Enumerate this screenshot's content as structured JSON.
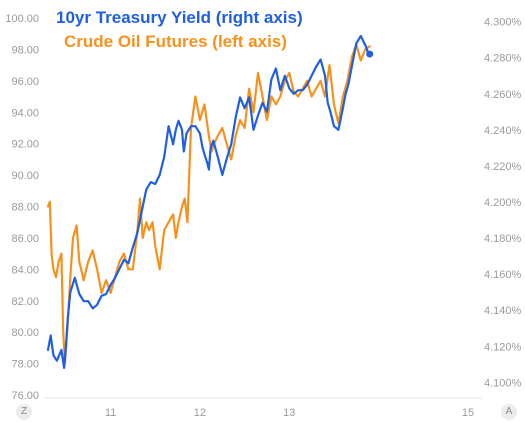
{
  "chart_data": {
    "type": "line",
    "title": "",
    "xlabel": "",
    "legend_position": "top-left",
    "grid": false,
    "x_ticks": [
      "11",
      "12",
      "13",
      "15"
    ],
    "x_range": [
      10.3,
      15
    ],
    "y_left": {
      "ticks": [
        "76.00",
        "78.00",
        "80.00",
        "82.00",
        "84.00",
        "86.00",
        "88.00",
        "90.00",
        "92.00",
        "94.00",
        "96.00",
        "98.00",
        "100.00"
      ],
      "range": [
        76,
        100
      ]
    },
    "y_right": {
      "ticks": [
        "4.100%",
        "4.120%",
        "4.140%",
        "4.160%",
        "4.180%",
        "4.200%",
        "4.220%",
        "4.240%",
        "4.260%",
        "4.280%",
        "4.300%"
      ],
      "range": [
        4.093,
        4.302
      ]
    },
    "series": [
      {
        "name": "10yr Treasury Yield (right axis)",
        "axis": "right",
        "color": "#1f5fe0",
        "x": [
          10.3,
          10.33,
          10.36,
          10.4,
          10.45,
          10.48,
          10.5,
          10.52,
          10.55,
          10.6,
          10.65,
          10.7,
          10.75,
          10.8,
          10.85,
          10.9,
          10.95,
          11.0,
          11.05,
          11.1,
          11.15,
          11.2,
          11.25,
          11.3,
          11.35,
          11.4,
          11.45,
          11.5,
          11.55,
          11.6,
          11.65,
          11.7,
          11.73,
          11.76,
          11.8,
          11.82,
          11.85,
          11.9,
          11.95,
          12.0,
          12.03,
          12.06,
          12.08,
          12.1,
          12.12,
          12.15,
          12.2,
          12.25,
          12.3,
          12.35,
          12.4,
          12.45,
          12.5,
          12.55,
          12.6,
          12.65,
          12.7,
          12.75,
          12.8,
          12.85,
          12.9,
          12.95,
          13.0,
          13.05,
          13.1,
          13.15,
          13.2,
          13.25,
          13.3,
          13.35,
          13.4,
          13.43,
          13.46,
          13.5,
          13.55,
          13.6,
          13.63,
          13.66,
          13.7,
          13.75,
          13.8,
          13.82,
          13.84,
          13.86,
          13.88,
          13.9
        ],
        "values": [
          4.118,
          4.126,
          4.115,
          4.112,
          4.118,
          4.108,
          4.12,
          4.135,
          4.15,
          4.158,
          4.149,
          4.145,
          4.145,
          4.141,
          4.143,
          4.148,
          4.149,
          4.154,
          4.158,
          4.163,
          4.168,
          4.166,
          4.175,
          4.183,
          4.195,
          4.207,
          4.211,
          4.21,
          4.215,
          4.225,
          4.242,
          4.232,
          4.24,
          4.245,
          4.24,
          4.228,
          4.238,
          4.242,
          4.242,
          4.238,
          4.23,
          4.225,
          4.222,
          4.218,
          4.23,
          4.234,
          4.225,
          4.215,
          4.224,
          4.232,
          4.247,
          4.258,
          4.252,
          4.258,
          4.24,
          4.248,
          4.255,
          4.25,
          4.268,
          4.274,
          4.262,
          4.27,
          4.263,
          4.26,
          4.262,
          4.262,
          4.265,
          4.27,
          4.275,
          4.279,
          4.27,
          4.255,
          4.25,
          4.242,
          4.24,
          4.252,
          4.26,
          4.265,
          4.275,
          4.288,
          4.292,
          4.29,
          4.288,
          4.286,
          4.283,
          4.282
        ]
      },
      {
        "name": "Crude Oil Futures (left axis)",
        "axis": "left",
        "color": "#f5921e",
        "x": [
          10.3,
          10.32,
          10.34,
          10.36,
          10.39,
          10.42,
          10.45,
          10.47,
          10.49,
          10.52,
          10.55,
          10.58,
          10.62,
          10.65,
          10.7,
          10.75,
          10.8,
          10.85,
          10.9,
          10.95,
          11.0,
          11.05,
          11.1,
          11.15,
          11.2,
          11.25,
          11.3,
          11.33,
          11.36,
          11.4,
          11.43,
          11.47,
          11.5,
          11.55,
          11.6,
          11.65,
          11.7,
          11.73,
          11.76,
          11.8,
          11.83,
          11.86,
          11.9,
          11.95,
          12.0,
          12.05,
          12.1,
          12.13,
          12.16,
          12.2,
          12.25,
          12.3,
          12.35,
          12.4,
          12.45,
          12.5,
          12.55,
          12.6,
          12.65,
          12.7,
          12.75,
          12.8,
          12.85,
          12.9,
          12.95,
          13.0,
          13.05,
          13.1,
          13.15,
          13.2,
          13.25,
          13.3,
          13.35,
          13.4,
          13.45,
          13.48,
          13.5,
          13.52,
          13.55,
          13.6,
          13.65,
          13.7,
          13.75,
          13.8,
          13.85,
          13.9
        ],
        "values": [
          88.0,
          88.3,
          85.0,
          84.0,
          83.5,
          84.5,
          85.0,
          80.0,
          78.0,
          80.5,
          83.5,
          86.0,
          86.8,
          84.5,
          83.3,
          84.5,
          85.2,
          84.0,
          82.5,
          83.3,
          82.5,
          83.5,
          84.5,
          85.0,
          84.0,
          84.0,
          86.5,
          88.5,
          86.0,
          87.0,
          86.5,
          87.0,
          85.5,
          84.0,
          86.5,
          87.0,
          87.5,
          86.0,
          87.0,
          88.0,
          88.5,
          87.0,
          93.0,
          95.0,
          93.5,
          94.5,
          92.5,
          91.5,
          92.0,
          92.5,
          93.0,
          92.0,
          91.0,
          92.5,
          93.5,
          93.0,
          95.5,
          94.0,
          96.5,
          95.0,
          93.5,
          95.0,
          94.5,
          95.0,
          96.0,
          96.5,
          95.3,
          95.0,
          95.5,
          96.0,
          95.0,
          95.5,
          96.0,
          95.0,
          97.0,
          95.5,
          94.5,
          94.0,
          93.3,
          95.0,
          96.0,
          97.5,
          98.3,
          97.3,
          98.0,
          98.2
        ]
      }
    ]
  },
  "corner_buttons": {
    "left": "Z",
    "right": "A"
  }
}
